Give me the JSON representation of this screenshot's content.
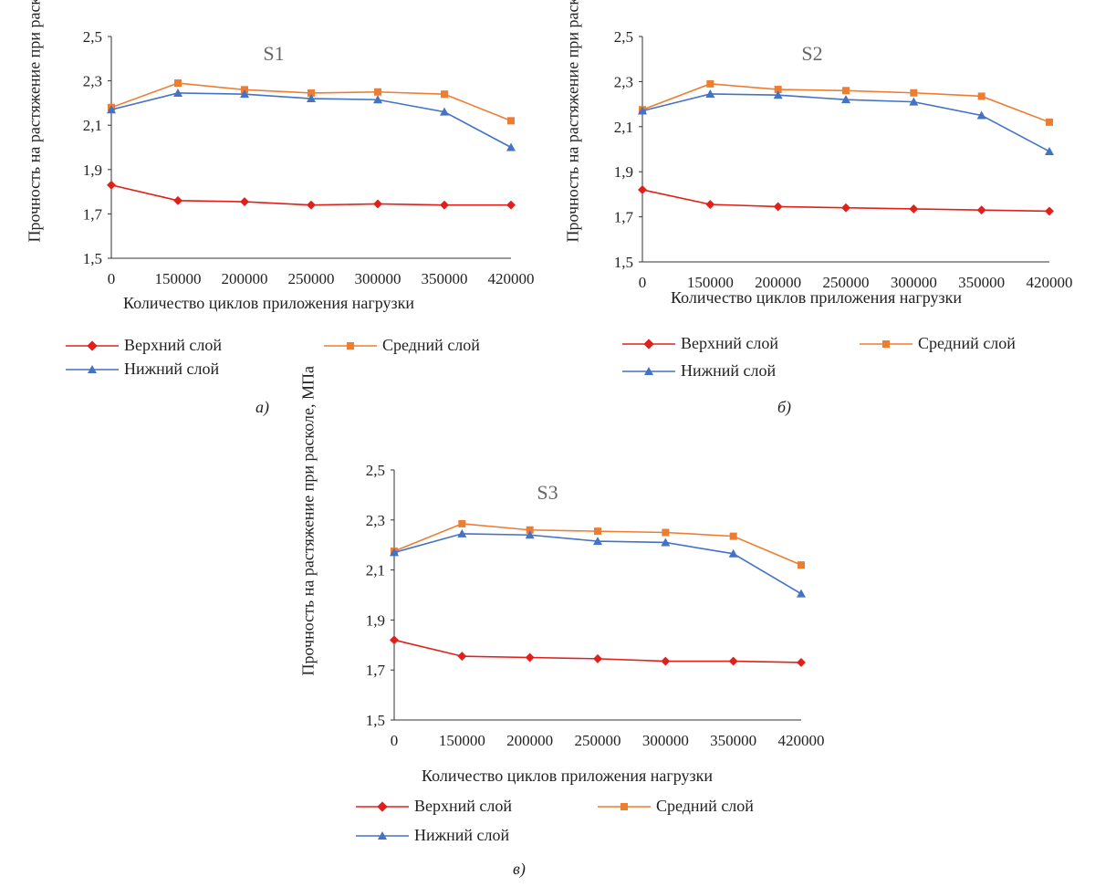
{
  "chart_data": [
    {
      "type": "line",
      "title": "S1",
      "xlabel": "Количество циклов приложения нагрузки",
      "ylabel": "Прочность на растяжение при расколе, МПа",
      "categories": [
        "0",
        "150000",
        "200000",
        "250000",
        "300000",
        "350000",
        "420000"
      ],
      "ylim": [
        1.5,
        2.5
      ],
      "yticks": [
        "1,5",
        "1,7",
        "1,9",
        "2,1",
        "2,3",
        "2,5"
      ],
      "grid": false,
      "legend_position": "bottom",
      "series": [
        {
          "name": "Верхний слой",
          "color": "#e0201b",
          "marker": "diamond",
          "values": [
            1.83,
            1.76,
            1.755,
            1.74,
            1.745,
            1.74,
            1.74
          ]
        },
        {
          "name": "Средний слой",
          "color": "#ed7d31",
          "marker": "square",
          "values": [
            2.18,
            2.29,
            2.26,
            2.245,
            2.25,
            2.24,
            2.12
          ]
        },
        {
          "name": "Нижний слой",
          "color": "#4472c4",
          "marker": "triangle",
          "values": [
            2.17,
            2.245,
            2.24,
            2.22,
            2.215,
            2.16,
            2.0
          ]
        }
      ],
      "caption": "а)"
    },
    {
      "type": "line",
      "title": "S2",
      "xlabel": "Количество циклов приложения нагрузки",
      "ylabel": "Прочность на растяжение при расколе, МПа",
      "categories": [
        "0",
        "150000",
        "200000",
        "250000",
        "300000",
        "350000",
        "420000"
      ],
      "ylim": [
        1.5,
        2.5
      ],
      "yticks": [
        "1,5",
        "1,7",
        "1,9",
        "2,1",
        "2,3",
        "2,5"
      ],
      "grid": false,
      "legend_position": "bottom",
      "series": [
        {
          "name": "Верхний слой",
          "color": "#e0201b",
          "marker": "diamond",
          "values": [
            1.82,
            1.755,
            1.745,
            1.74,
            1.735,
            1.73,
            1.725
          ]
        },
        {
          "name": "Средний слой",
          "color": "#ed7d31",
          "marker": "square",
          "values": [
            2.175,
            2.29,
            2.265,
            2.26,
            2.25,
            2.235,
            2.12
          ]
        },
        {
          "name": "Нижний слой",
          "color": "#4472c4",
          "marker": "triangle",
          "values": [
            2.17,
            2.245,
            2.24,
            2.22,
            2.21,
            2.15,
            1.99
          ]
        }
      ],
      "caption": "б)"
    },
    {
      "type": "line",
      "title": "S3",
      "xlabel": "Количество циклов приложения нагрузки",
      "ylabel": "Прочность на растяжение при расколе, МПа",
      "categories": [
        "0",
        "150000",
        "200000",
        "250000",
        "300000",
        "350000",
        "420000"
      ],
      "ylim": [
        1.5,
        2.5
      ],
      "yticks": [
        "1,5",
        "1,7",
        "1,9",
        "2,1",
        "2,3",
        "2,5"
      ],
      "grid": false,
      "legend_position": "bottom",
      "series": [
        {
          "name": "Верхний слой",
          "color": "#e0201b",
          "marker": "diamond",
          "values": [
            1.82,
            1.755,
            1.75,
            1.745,
            1.735,
            1.735,
            1.73
          ]
        },
        {
          "name": "Средний слой",
          "color": "#ed7d31",
          "marker": "square",
          "values": [
            2.175,
            2.285,
            2.26,
            2.255,
            2.25,
            2.235,
            2.12
          ]
        },
        {
          "name": "Нижний слой",
          "color": "#4472c4",
          "marker": "triangle",
          "values": [
            2.17,
            2.245,
            2.24,
            2.215,
            2.21,
            2.165,
            2.005
          ]
        }
      ],
      "caption": "в)"
    }
  ]
}
